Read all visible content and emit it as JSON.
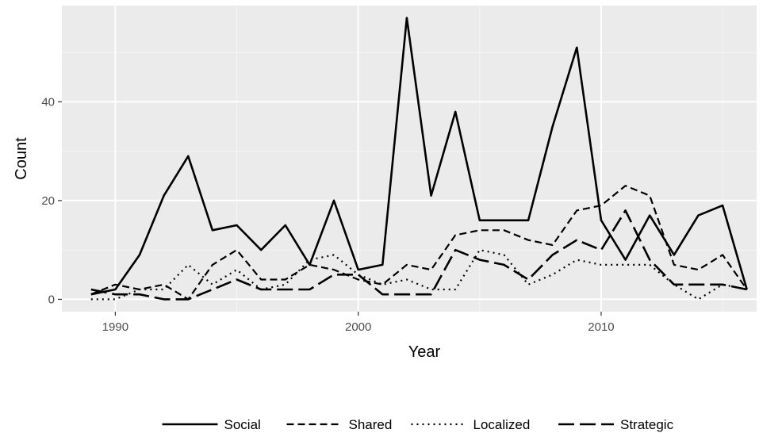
{
  "chart_data": {
    "type": "line",
    "xlabel": "Year",
    "ylabel": "Count",
    "xlim": [
      1987.8,
      2016.4
    ],
    "ylim": [
      -2.5,
      59.5
    ],
    "x_ticks": [
      1990,
      2000,
      2010
    ],
    "y_ticks": [
      0,
      20,
      40
    ],
    "x_tick_labels": [
      "1990",
      "2000",
      "2010"
    ],
    "y_tick_labels": [
      "0",
      "20",
      "40"
    ],
    "grid": true,
    "legend_position": "bottom",
    "x": [
      1989,
      1990,
      1991,
      1992,
      1993,
      1994,
      1995,
      1996,
      1997,
      1998,
      1999,
      2000,
      2001,
      2002,
      2003,
      2004,
      2005,
      2006,
      2007,
      2008,
      2009,
      2010,
      2011,
      2012,
      2013,
      2014,
      2015,
      2016
    ],
    "series": [
      {
        "name": "Social",
        "dash": "solid",
        "width": 2.6,
        "values": [
          1,
          2,
          9,
          21,
          29,
          14,
          15,
          10,
          15,
          7,
          20,
          6,
          7,
          57,
          21,
          38,
          16,
          16,
          16,
          35,
          51,
          16,
          8,
          17,
          9,
          17,
          19,
          2
        ]
      },
      {
        "name": "Shared",
        "dash": "short-dash",
        "width": 2.2,
        "values": [
          1,
          3,
          2,
          3,
          0,
          7,
          10,
          4,
          4,
          7,
          6,
          4,
          3,
          7,
          6,
          13,
          14,
          14,
          12,
          11,
          18,
          19,
          23,
          21,
          7,
          6,
          9,
          2
        ]
      },
      {
        "name": "Localized",
        "dash": "dotted",
        "width": 2.2,
        "values": [
          0,
          0,
          2,
          2,
          7,
          3,
          6,
          2,
          3,
          8,
          9,
          5,
          3,
          4,
          2,
          2,
          10,
          9,
          3,
          5,
          8,
          7,
          7,
          7,
          3,
          0,
          3,
          2
        ]
      },
      {
        "name": "Strategic",
        "dash": "long-dash",
        "width": 2.6,
        "values": [
          2,
          1,
          1,
          0,
          0,
          2,
          4,
          2,
          2,
          2,
          5,
          5,
          1,
          1,
          1,
          10,
          8,
          7,
          4,
          9,
          12,
          10,
          18,
          8,
          3,
          3,
          3,
          2
        ]
      }
    ]
  }
}
